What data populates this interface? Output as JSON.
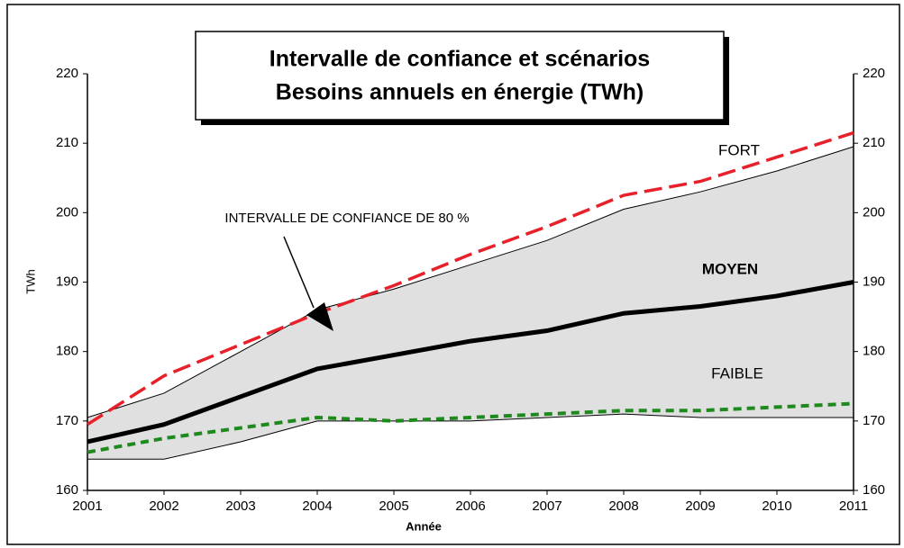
{
  "chart_data": {
    "type": "line",
    "title": [
      "Intervalle de confiance et scénarios",
      "Besoins annuels en énergie (TWh)"
    ],
    "y_label": "TWh",
    "x_label": "Année",
    "x": [
      2001,
      2002,
      2003,
      2004,
      2005,
      2006,
      2007,
      2008,
      2009,
      2010,
      2011
    ],
    "xlim": [
      2001,
      2011
    ],
    "xticks": [
      2001,
      2002,
      2003,
      2004,
      2005,
      2006,
      2007,
      2008,
      2009,
      2010,
      2011
    ],
    "ylim": [
      160,
      220
    ],
    "yticks": [
      160,
      170,
      180,
      190,
      200,
      210,
      220
    ],
    "y2lim": [
      160,
      220
    ],
    "y2ticks": [
      160,
      170,
      180,
      190,
      200,
      210,
      220
    ],
    "grid": false,
    "band": {
      "name": "INTERVALLE DE CONFIANCE DE 80 %",
      "color": "#e0e0e0",
      "upper": [
        170.5,
        174,
        180,
        186,
        189,
        192.5,
        196,
        200.5,
        203,
        206,
        209.5
      ],
      "lower": [
        164.5,
        164.5,
        167,
        170,
        170,
        170,
        170.5,
        171,
        170.5,
        170.5,
        170.5
      ]
    },
    "series": [
      {
        "name": "FORT",
        "color": "#e8202a",
        "style": "dashed",
        "values": [
          169.5,
          176.5,
          181,
          185.5,
          189.5,
          194,
          198,
          202.5,
          204.5,
          208,
          211.5
        ]
      },
      {
        "name": "MOYEN",
        "color": "#000000",
        "style": "solid",
        "values": [
          167,
          169.5,
          173.5,
          177.5,
          179.5,
          181.5,
          183,
          185.5,
          186.5,
          188,
          190
        ]
      },
      {
        "name": "FAIBLE",
        "color": "#1e8a1e",
        "style": "dotted",
        "values": [
          165.5,
          167.5,
          169,
          170.5,
          170,
          170.5,
          171,
          171.5,
          171.5,
          172,
          172.5
        ]
      }
    ]
  }
}
